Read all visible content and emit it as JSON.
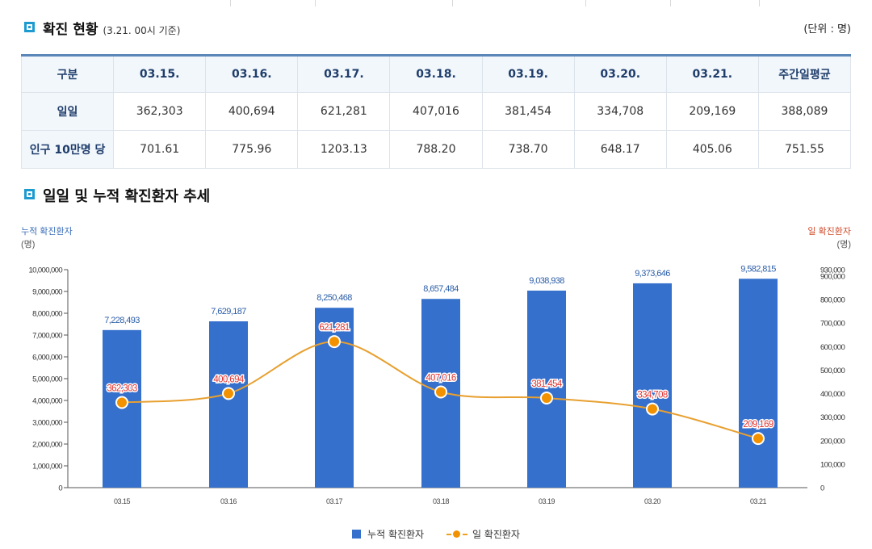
{
  "section1": {
    "title": "확진 현황",
    "subtitle": "(3.21. 00시 기준)",
    "unit": "(단위 : 명)"
  },
  "table": {
    "headers": [
      "구분",
      "03.15.",
      "03.16.",
      "03.17.",
      "03.18.",
      "03.19.",
      "03.20.",
      "03.21.",
      "주간일평균"
    ],
    "rows": [
      {
        "label": "일일",
        "cells": [
          "362,303",
          "400,694",
          "621,281",
          "407,016",
          "381,454",
          "334,708",
          "209,169",
          "388,089"
        ]
      },
      {
        "label": "인구 10만명 당",
        "cells": [
          "701.61",
          "775.96",
          "1203.13",
          "788.20",
          "738.70",
          "648.17",
          "405.06",
          "751.55"
        ]
      }
    ]
  },
  "section2": {
    "title": "일일 및 누적 확진환자 추세"
  },
  "chart_data": {
    "type": "bar+line",
    "categories": [
      "03.15",
      "03.16",
      "03.17",
      "03.18",
      "03.19",
      "03.20",
      "03.21"
    ],
    "left_axis": {
      "label": "누적 확진환자",
      "unit": "(명)",
      "ylim": [
        0,
        10000000
      ],
      "ticks": [
        "0",
        "1,000,000",
        "2,000,000",
        "3,000,000",
        "4,000,000",
        "5,000,000",
        "6,000,000",
        "7,000,000",
        "8,000,000",
        "9,000,000",
        "10,000,000"
      ],
      "tick_values": [
        0,
        1000000,
        2000000,
        3000000,
        4000000,
        5000000,
        6000000,
        7000000,
        8000000,
        9000000,
        10000000
      ]
    },
    "right_axis": {
      "label": "일 확진환자",
      "unit": "(명)",
      "ticks": [
        "0",
        "100,000",
        "200,000",
        "300,000",
        "400,000",
        "500,000",
        "600,000",
        "700,000",
        "800,000",
        "900,000",
        "930,000"
      ],
      "tick_values": [
        0,
        100000,
        200000,
        300000,
        400000,
        500000,
        600000,
        700000,
        800000,
        900000,
        930000
      ]
    },
    "series": [
      {
        "name": "누적 확진환자",
        "type": "bar",
        "axis": "left",
        "color": "#3570cc",
        "values": [
          7228493,
          7629187,
          8250468,
          8657484,
          9038938,
          9373646,
          9582815
        ],
        "labels": [
          "7,228,493",
          "7,629,187",
          "8,250,468",
          "8,657,484",
          "9,038,938",
          "9,373,646",
          "9,582,815"
        ]
      },
      {
        "name": "일 확진환자",
        "type": "line",
        "axis": "right",
        "color": "#f39200",
        "line_color": "#e8a030",
        "values": [
          362303,
          400694,
          621281,
          407016,
          381454,
          334708,
          209169
        ],
        "labels": [
          "362,303",
          "400,694",
          "621,281",
          "407,016",
          "381,454",
          "334,708",
          "209,169"
        ]
      }
    ],
    "colors": {
      "left_axis": "#3a6eb8",
      "right_axis": "#d04b2a",
      "label_red": "#e3342f",
      "bar_label": "#2c5ea8"
    }
  }
}
